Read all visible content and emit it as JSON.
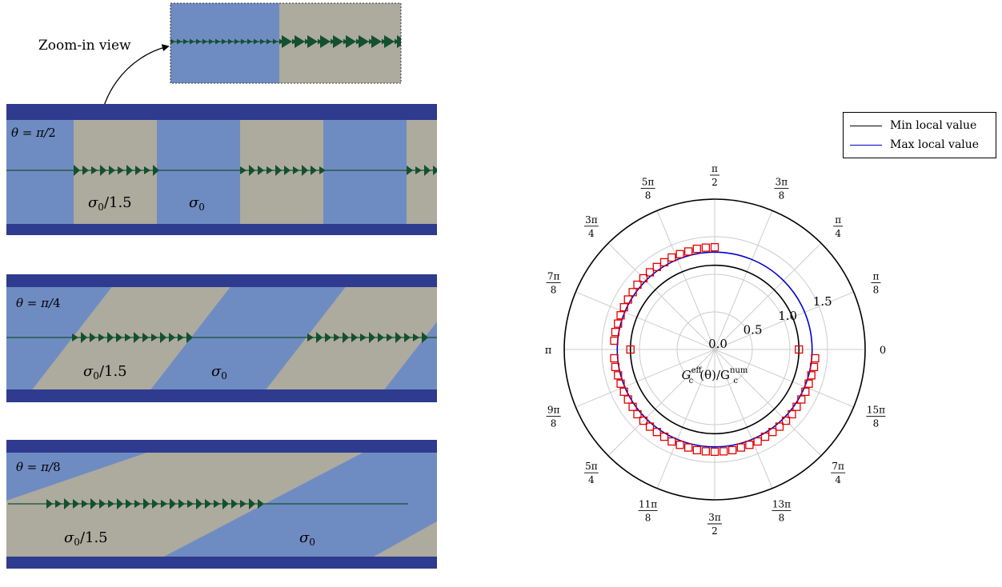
{
  "zoom_label": "Zoom-in view",
  "panels": [
    {
      "theta_prefix": "θ = π/",
      "theta_den": "2",
      "label_a": "σ",
      "label_a_sub": "0",
      "label_a_suffix": "/1.5",
      "label_b": "σ",
      "label_b_sub": "0"
    },
    {
      "theta_prefix": "θ = π/",
      "theta_den": "4",
      "label_a": "σ",
      "label_a_sub": "0",
      "label_a_suffix": "/1.5",
      "label_b": "σ",
      "label_b_sub": "0"
    },
    {
      "theta_prefix": "θ = π/",
      "theta_den": "8",
      "label_a": "σ",
      "label_a_sub": "0",
      "label_a_suffix": "/1.5",
      "label_b": "σ",
      "label_b_sub": "0"
    }
  ],
  "colors": {
    "stripe_blue": "#6f8cc2",
    "stripe_grey": "#adaa9e",
    "boundary_navy": "#2e3b8e",
    "crack_green": "#13502f",
    "min_curve": "#000000",
    "max_curve": "#0000cc",
    "marker_red": "#e00000"
  },
  "chart_data": {
    "type": "polar",
    "angle_labels": [
      {
        "num": "",
        "den": "",
        "text": "0"
      },
      {
        "num": "π",
        "den": "8",
        "text": ""
      },
      {
        "num": "π",
        "den": "4",
        "text": ""
      },
      {
        "num": "3π",
        "den": "8",
        "text": ""
      },
      {
        "num": "π",
        "den": "2",
        "text": ""
      },
      {
        "num": "5π",
        "den": "8",
        "text": ""
      },
      {
        "num": "3π",
        "den": "4",
        "text": ""
      },
      {
        "num": "7π",
        "den": "8",
        "text": ""
      },
      {
        "num": "",
        "den": "",
        "text": "π"
      },
      {
        "num": "9π",
        "den": "8",
        "text": ""
      },
      {
        "num": "5π",
        "den": "4",
        "text": ""
      },
      {
        "num": "11π",
        "den": "8",
        "text": ""
      },
      {
        "num": "3π",
        "den": "2",
        "text": ""
      },
      {
        "num": "13π",
        "den": "8",
        "text": ""
      },
      {
        "num": "7π",
        "den": "4",
        "text": ""
      },
      {
        "num": "15π",
        "den": "8",
        "text": ""
      }
    ],
    "radial_ticks": [
      "0.0",
      "0.5",
      "1.0",
      "1.5"
    ],
    "radial_tick_values": [
      0.0,
      0.5,
      1.0,
      1.5
    ],
    "rlim": [
      0,
      2.0
    ],
    "radial_axis_label_main": "G",
    "radial_axis_label_sup1": "eff",
    "radial_axis_label_sub1": "c",
    "radial_axis_label_mid": "(θ)/G",
    "radial_axis_label_sup2": "num",
    "radial_axis_label_sub2": "c",
    "grid": true,
    "legend_position": "top-right",
    "series": [
      {
        "name": "Min local value",
        "kind": "line",
        "color": "#000000",
        "r": 1.12
      },
      {
        "name": "Max local value",
        "kind": "line",
        "color": "#0000cc",
        "r": 1.295
      },
      {
        "kind": "markers",
        "color": "#e00000",
        "theta_deg": [
          0,
          90,
          95,
          100,
          105,
          110,
          115,
          120,
          125,
          130,
          135,
          140,
          145,
          150,
          155,
          160,
          165,
          170,
          175,
          180,
          185,
          190,
          195,
          200,
          205,
          210,
          215,
          220,
          225,
          230,
          235,
          240,
          245,
          250,
          255,
          260,
          265,
          270,
          275,
          280,
          285,
          290,
          295,
          300,
          305,
          310,
          315,
          320,
          325,
          330,
          335,
          340,
          345,
          350,
          355
        ],
        "r": [
          1.12,
          1.36,
          1.36,
          1.36,
          1.35,
          1.35,
          1.35,
          1.34,
          1.34,
          1.34,
          1.34,
          1.34,
          1.33,
          1.33,
          1.33,
          1.33,
          1.33,
          1.34,
          1.34,
          1.12,
          1.34,
          1.34,
          1.33,
          1.33,
          1.33,
          1.33,
          1.33,
          1.34,
          1.34,
          1.34,
          1.34,
          1.34,
          1.35,
          1.35,
          1.35,
          1.36,
          1.36,
          1.36,
          1.36,
          1.36,
          1.35,
          1.35,
          1.35,
          1.34,
          1.34,
          1.34,
          1.34,
          1.34,
          1.33,
          1.33,
          1.33,
          1.33,
          1.33,
          1.34,
          1.34
        ]
      }
    ]
  }
}
